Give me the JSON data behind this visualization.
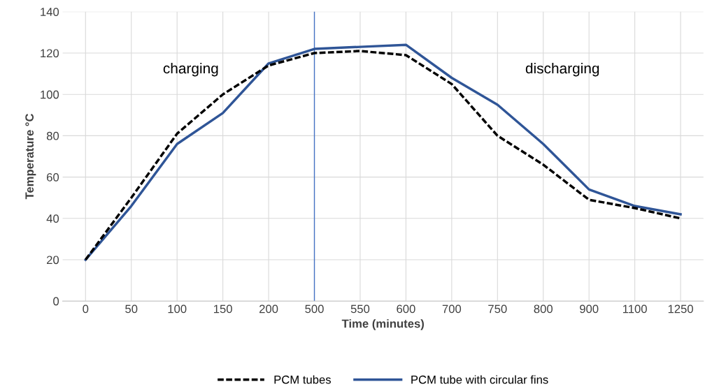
{
  "chart_data": {
    "type": "line",
    "xlabel": "Time (minutes)",
    "ylabel": "Temperature °C",
    "categories": [
      "0",
      "50",
      "100",
      "150",
      "200",
      "500",
      "550",
      "600",
      "700",
      "750",
      "800",
      "900",
      "1100",
      "1250"
    ],
    "series": [
      {
        "name": "PCM tubes",
        "color": "#000000",
        "line_style": "dashed",
        "values": [
          20,
          50,
          81,
          100,
          114,
          120,
          121,
          119,
          105,
          80,
          66,
          49,
          45,
          40
        ]
      },
      {
        "name": "PCM tube with circular fins",
        "color": "#2f5597",
        "line_style": "solid",
        "values": [
          20,
          46,
          76,
          91,
          115,
          122,
          123,
          124,
          108,
          95,
          76,
          54,
          46,
          42
        ]
      }
    ],
    "ylim": [
      0,
      140
    ],
    "yticks": [
      0,
      20,
      40,
      60,
      80,
      100,
      120,
      140
    ],
    "ref_lines": [
      {
        "axis": "x",
        "value": "500",
        "color": "#4472c4"
      }
    ],
    "annotations": [
      "charging",
      "discharging"
    ],
    "grid": true,
    "legend": "bottom",
    "marker": "none"
  }
}
